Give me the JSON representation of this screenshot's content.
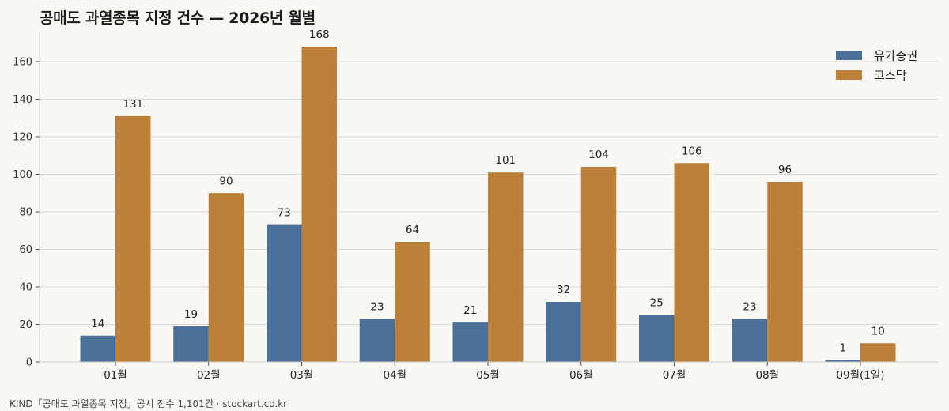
{
  "title": "공매도 과열종목 지정 건수 — 2026년 월별",
  "footer": "KIND「공매도 과열종목 지정」공시 전수 1,101건 · stockart.co.kr",
  "chart_data": {
    "type": "bar",
    "title": "공매도 과열종목 지정 건수 — 2026년 월별",
    "categories": [
      "01월",
      "02월",
      "03월",
      "04월",
      "05월",
      "06월",
      "07월",
      "08월",
      "09월(1일)"
    ],
    "series": [
      {
        "name": "유가증권",
        "color": "#4a6f98",
        "values": [
          14,
          19,
          73,
          23,
          21,
          32,
          25,
          23,
          1
        ]
      },
      {
        "name": "코스닥",
        "color": "#bc8038",
        "values": [
          131,
          90,
          168,
          64,
          101,
          104,
          106,
          96,
          10
        ]
      }
    ],
    "ylim": [
      0,
      176
    ],
    "yticks": [
      0,
      20,
      40,
      60,
      80,
      100,
      120,
      140,
      160
    ],
    "xlabel": "",
    "ylabel": "",
    "grid": "horizontal",
    "legend": "top-right",
    "data_labels": true
  }
}
